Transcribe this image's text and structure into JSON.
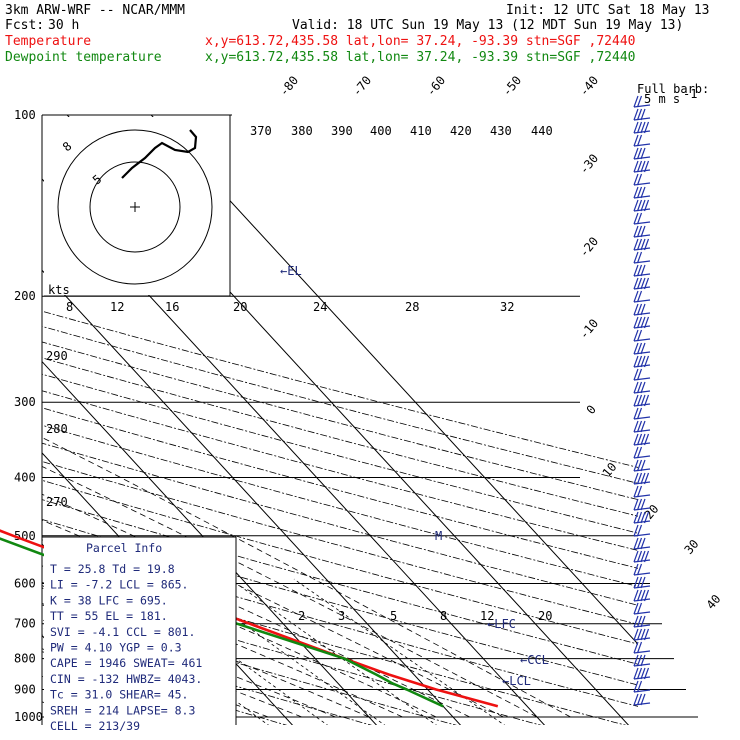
{
  "header": {
    "model": "3km ARW-WRF -- NCAR/MMM",
    "init": "Init: 12 UTC Sat 18 May 13",
    "fcst_label": "Fcst:",
    "fcst_value": "30 h",
    "valid": "Valid: 18 UTC Sun 19 May 13 (12 MDT Sun 19 May 13)",
    "temp_label": "Temperature",
    "temp_info": "x,y=613.72,435.58   lat,lon= 37.24, -93.39   stn=SGF ,72440",
    "dew_label": "Dewpoint temperature",
    "dew_info": "x,y=613.72,435.58   lat,lon= 37.24, -93.39   stn=SGF ,72440"
  },
  "colors": {
    "temperature": "#ee1111",
    "dewpoint": "#118811",
    "info": "#1f2a7a",
    "barb": "#2233aa"
  },
  "windbarb_label": "Full barb:",
  "windbarb_value": "5 m s",
  "windbarb_exponent": "-1",
  "hodograph_rings": [
    "8",
    "5"
  ],
  "hodograph_kts_label": "kts",
  "hodograph_scale": [
    "8",
    "12",
    "16",
    "20",
    "24",
    "28",
    "32"
  ],
  "theta_labels": [
    "370",
    "380",
    "390",
    "400",
    "410",
    "420",
    "430",
    "440",
    "290",
    "280",
    "270"
  ],
  "mixing_ratio_labels": [
    "2",
    "3",
    "5",
    "8",
    "12",
    "20"
  ],
  "annotations": {
    "el": "←EL",
    "lfc": "←LFC",
    "ccl": "←CCL",
    "lcl": "←LCL",
    "mark": "M"
  },
  "parcel_info": {
    "title": "Parcel Info",
    "rows": [
      "T   =   25.8  Td =  19.8",
      "LI  =   -7.2  LCL =  865.",
      "K   =    38  LFC =  695.",
      "TT  =    55  EL  =  181.",
      "SVI =   -4.1  CCL =  801.",
      "PW  =   4.10  YGP =   0.3",
      "CAPE =  1946  SWEAT=  461",
      "CIN  =  -132  HWBZ= 4043.",
      "Tc  =   31.0  SHEAR=  45.",
      "SREH =   214  LAPSE=  8.3",
      "CELL = 213/39"
    ]
  },
  "chart_data": {
    "type": "line",
    "title": "Skew-T log-P sounding, stn SGF",
    "xlabel": "Temperature (C), skewed",
    "ylabel": "Pressure (hPa)",
    "pressure_levels": [
      "100",
      "200",
      "300",
      "400",
      "500",
      "600",
      "700",
      "800",
      "900",
      "1000"
    ],
    "isotherm_labels": [
      "-80",
      "-70",
      "-60",
      "-50",
      "-40",
      "-30",
      "-20",
      "-10",
      "0",
      "10",
      "20",
      "30",
      "40"
    ],
    "ylim": [
      1000,
      100
    ],
    "series": [
      {
        "name": "Temperature",
        "points": [
          {
            "p": 960,
            "t": 26.5
          },
          {
            "p": 900,
            "t": 21.0
          },
          {
            "p": 850,
            "t": 17.0
          },
          {
            "p": 800,
            "t": 13.5
          },
          {
            "p": 700,
            "t": 6.0
          },
          {
            "p": 600,
            "t": -2.5
          },
          {
            "p": 500,
            "t": -12.5
          },
          {
            "p": 450,
            "t": -18.0
          },
          {
            "p": 400,
            "t": -24.5
          },
          {
            "p": 300,
            "t": -38.0
          },
          {
            "p": 250,
            "t": -47.0
          },
          {
            "p": 200,
            "t": -57.0
          },
          {
            "p": 180,
            "t": -59.5
          },
          {
            "p": 160,
            "t": -58.5
          },
          {
            "p": 140,
            "t": -60.0
          },
          {
            "p": 120,
            "t": -62.5
          },
          {
            "p": 100,
            "t": -64.0
          }
        ]
      },
      {
        "name": "Dewpoint",
        "points": [
          {
            "p": 960,
            "t": 20.0
          },
          {
            "p": 900,
            "t": 17.5
          },
          {
            "p": 880,
            "t": 16.5
          },
          {
            "p": 850,
            "t": 15.5
          },
          {
            "p": 800,
            "t": 13.5
          },
          {
            "p": 700,
            "t": 4.5
          },
          {
            "p": 600,
            "t": -5.0
          },
          {
            "p": 500,
            "t": -15.0
          },
          {
            "p": 450,
            "t": -22.0
          },
          {
            "p": 400,
            "t": -38.0
          },
          {
            "p": 350,
            "t": -55.0
          },
          {
            "p": 320,
            "t": -58.0
          },
          {
            "p": 300,
            "t": -52.0
          },
          {
            "p": 270,
            "t": -47.0
          },
          {
            "p": 250,
            "t": -46.0
          },
          {
            "p": 200,
            "t": -62.0
          },
          {
            "p": 180,
            "t": -66.0
          },
          {
            "p": 150,
            "t": -74.0
          },
          {
            "p": 120,
            "t": -85.0
          },
          {
            "p": 100,
            "t": -87.0
          }
        ]
      }
    ]
  }
}
